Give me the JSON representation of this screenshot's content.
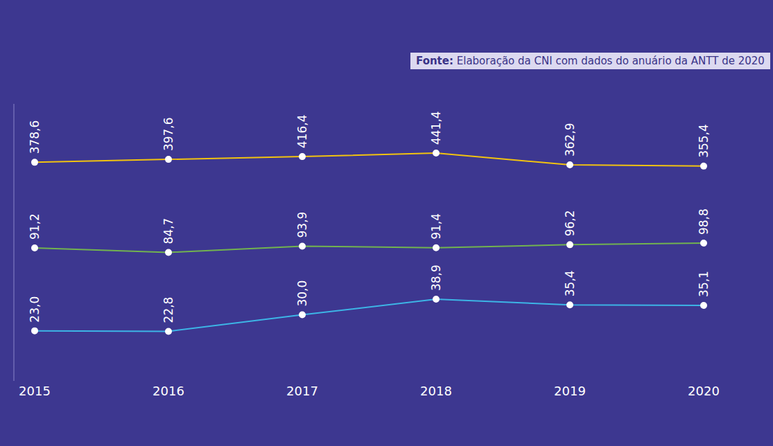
{
  "chart_data": {
    "type": "line",
    "source": {
      "label": "Fonte:",
      "text": "Elaboração da CNI com dados do anuário da ANTT de 2020"
    },
    "categories": [
      "2015",
      "2016",
      "2017",
      "2018",
      "2019",
      "2020"
    ],
    "series": [
      {
        "color": "#f2c30f",
        "values": [
          378.6,
          397.6,
          416.4,
          441.4,
          362.9,
          355.4
        ],
        "value_labels": [
          "378,6",
          "397,6",
          "416,4",
          "441,4",
          "362,9",
          "355,4"
        ],
        "marker": "circle"
      },
      {
        "color": "#72b34f",
        "values": [
          91.2,
          84.7,
          93.9,
          91.4,
          96.2,
          98.8
        ],
        "value_labels": [
          "91,2",
          "84,7",
          "93,9",
          "91,4",
          "96,2",
          "98,8"
        ],
        "marker": "circle"
      },
      {
        "color": "#3db5e6",
        "values": [
          23.0,
          22.8,
          30.0,
          38.9,
          35.4,
          35.1
        ],
        "value_labels": [
          "23,0",
          "22,8",
          "30,0",
          "38,9",
          "35,4",
          "35,1"
        ],
        "marker": "circle"
      }
    ],
    "log": "y",
    "ylim": [
      10,
      1000
    ],
    "data_labels": true,
    "tick_labels": "x",
    "grid": false
  }
}
